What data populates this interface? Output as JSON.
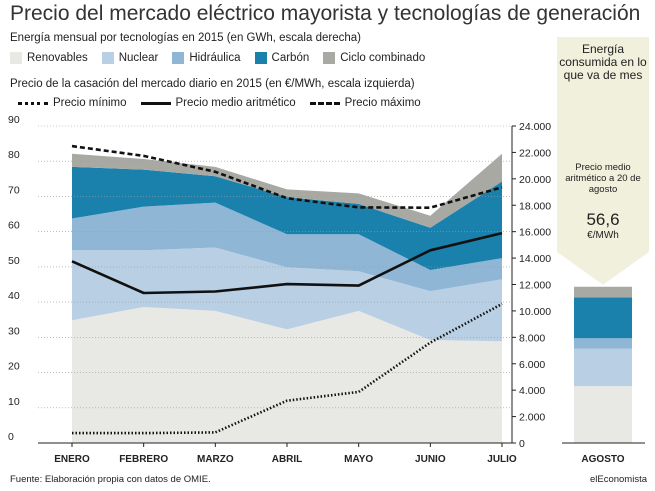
{
  "title": "Precio del mercado eléctrico mayorista y tecnologías de generación",
  "energy_subtitle": "Energía mensual por tecnologías en 2015 (en GWh, escala derecha)",
  "price_subtitle": "Precio de la casación del mercado diario en 2015 (en €/MWh, escala izquierda)",
  "source": "Fuente: Elaboración propia con datos de OMIE.",
  "brand": "elEconomista",
  "colors": {
    "renovables": "#e8e8e4",
    "nuclear": "#b9cfe3",
    "hidraulica": "#8fb6d5",
    "carbon": "#1a81ad",
    "ciclo": "#a9a9a4",
    "callout": "#f0f0dc"
  },
  "august": {
    "label": "AGOSTO",
    "header": "Energía consumida en lo que va de mes",
    "note": "Precio medio aritmético a 20 de agosto",
    "price": "56,6",
    "unit": "€/MWh",
    "stack_gwh": [
      4300,
      2850,
      780,
      3100,
      800
    ]
  },
  "chart_data": {
    "type": "area",
    "categories": [
      "ENERO",
      "FEBRERO",
      "MARZO",
      "ABRIL",
      "MAYO",
      "JUNIO",
      "JULIO"
    ],
    "y_left": {
      "label": "€/MWh",
      "ylim": [
        0,
        90
      ],
      "ticks": [
        "0",
        "10",
        "20",
        "30",
        "40",
        "50",
        "60",
        "70",
        "80",
        "90"
      ]
    },
    "y_right": {
      "label": "GWh",
      "ylim": [
        0,
        24000
      ],
      "ticks": [
        "0",
        "2.000",
        "4.000",
        "6.000",
        "8.000",
        "10.000",
        "12.000",
        "14.000",
        "16.000",
        "18.000",
        "20.000",
        "22.000",
        "24.000"
      ]
    },
    "energy_series": [
      {
        "name": "Renovables",
        "values": [
          9300,
          10300,
          10000,
          8600,
          10000,
          7800,
          7700
        ]
      },
      {
        "name": "Nuclear",
        "values": [
          5300,
          4300,
          4800,
          4700,
          3000,
          3700,
          4700
        ]
      },
      {
        "name": "Hidráulica",
        "values": [
          2400,
          3300,
          3400,
          2500,
          2800,
          1600,
          1600
        ]
      },
      {
        "name": "Carbón",
        "values": [
          3900,
          2800,
          2000,
          2800,
          2300,
          3200,
          5800
        ]
      },
      {
        "name": "Ciclo combinado",
        "values": [
          1000,
          800,
          700,
          600,
          800,
          900,
          2100
        ]
      }
    ],
    "price_series": [
      {
        "name": "Precio mínimo",
        "style": "dotted",
        "values": [
          2.8,
          2.8,
          3,
          12,
          14.5,
          28.5,
          39.5
        ]
      },
      {
        "name": "Precio medio aritmético",
        "style": "solid",
        "values": [
          51.6,
          42.6,
          43,
          45.1,
          44.7,
          54.7,
          59.6
        ]
      },
      {
        "name": "Precio máximo",
        "style": "dashed",
        "values": [
          84.3,
          81.5,
          77,
          69.5,
          66.9,
          66.8,
          72.6
        ]
      }
    ]
  }
}
